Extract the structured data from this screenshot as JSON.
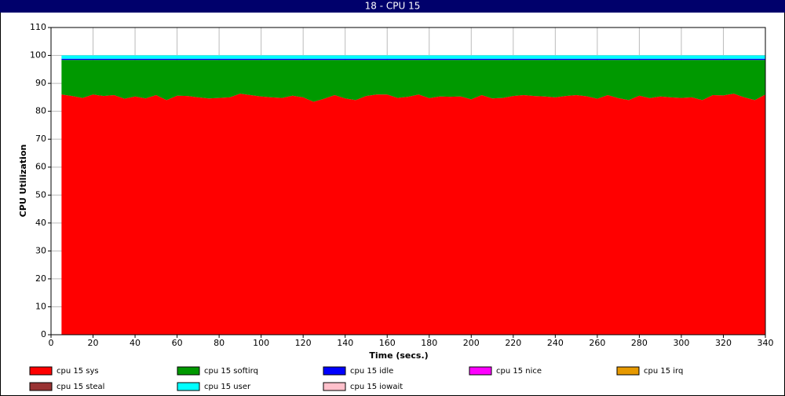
{
  "chart_data": {
    "type": "stacked_area",
    "title": "18 - CPU 15",
    "xlabel": "Time (secs.)",
    "ylabel": "CPU Utilization",
    "xlim": [
      0,
      340
    ],
    "xticks": [
      0,
      20,
      40,
      60,
      80,
      100,
      120,
      140,
      160,
      180,
      200,
      220,
      240,
      260,
      280,
      300,
      320,
      340
    ],
    "ylim": [
      0,
      110
    ],
    "yticks": [
      0,
      10,
      20,
      30,
      40,
      50,
      60,
      70,
      80,
      90,
      100,
      110
    ],
    "grid": true,
    "x": [
      5,
      10,
      15,
      20,
      25,
      30,
      35,
      40,
      45,
      50,
      55,
      60,
      65,
      70,
      75,
      80,
      85,
      90,
      95,
      100,
      105,
      110,
      115,
      120,
      125,
      130,
      135,
      140,
      145,
      150,
      155,
      160,
      165,
      170,
      175,
      180,
      185,
      190,
      195,
      200,
      205,
      210,
      215,
      220,
      225,
      230,
      235,
      240,
      245,
      250,
      255,
      260,
      265,
      270,
      275,
      280,
      285,
      290,
      295,
      300,
      305,
      310,
      315,
      320,
      325,
      330,
      335,
      340
    ],
    "series": [
      {
        "name": "cpu 15 sys",
        "color": "#ff0000",
        "values": [
          86,
          85.5,
          84.8,
          86,
          85.5,
          85.8,
          84.5,
          85.3,
          84.6,
          85.8,
          84,
          85.6,
          85.5,
          85,
          84.6,
          84.8,
          85,
          86.3,
          85.8,
          85.3,
          85,
          84.8,
          85.6,
          85,
          83.4,
          84.5,
          85.8,
          84.6,
          84,
          85.5,
          86,
          86,
          84.8,
          85.2,
          86,
          84.7,
          85.3,
          85.2,
          85.3,
          84.3,
          85.8,
          84.6,
          84.8,
          85.5,
          85.8,
          85.5,
          85.3,
          85,
          85.5,
          85.8,
          85.4,
          84.5,
          85.8,
          84.7,
          84,
          85.6,
          84.7,
          85.3,
          85,
          84.8,
          85,
          84,
          85.8,
          85.7,
          86.3,
          85,
          84,
          86
        ]
      },
      {
        "name": "cpu 15 softirq",
        "color": "#009900",
        "values": [
          12.4,
          12.9,
          13.6,
          12.4,
          12.9,
          12.6,
          13.9,
          13.1,
          13.8,
          12.6,
          14.4,
          12.8,
          12.9,
          13.4,
          13.8,
          13.6,
          13.4,
          12.1,
          12.6,
          13.1,
          13.4,
          13.6,
          12.8,
          13.4,
          15,
          13.9,
          12.6,
          13.8,
          14.4,
          12.9,
          12.4,
          12.4,
          13.6,
          13.2,
          12.4,
          13.7,
          13.1,
          13.2,
          13.1,
          14.1,
          12.6,
          13.8,
          13.6,
          12.9,
          12.6,
          12.9,
          13.1,
          13.4,
          12.9,
          12.6,
          13,
          13.9,
          12.6,
          13.7,
          14.4,
          12.8,
          13.7,
          13.1,
          13.4,
          13.6,
          13.4,
          14.4,
          12.6,
          12.7,
          12.1,
          13.4,
          14.4,
          12.4
        ]
      },
      {
        "name": "cpu 15 idle",
        "color": "#0000ff",
        "values": [
          0.4,
          0.4,
          0.4,
          0.4,
          0.4,
          0.4,
          0.4,
          0.4,
          0.4,
          0.4,
          0.4,
          0.4,
          0.4,
          0.4,
          0.4,
          0.4,
          0.4,
          0.4,
          0.4,
          0.4,
          0.4,
          0.4,
          0.4,
          0.4,
          0.4,
          0.4,
          0.4,
          0.4,
          0.4,
          0.4,
          0.4,
          0.4,
          0.4,
          0.4,
          0.4,
          0.4,
          0.4,
          0.4,
          0.4,
          0.4,
          0.4,
          0.4,
          0.4,
          0.4,
          0.4,
          0.4,
          0.4,
          0.4,
          0.4,
          0.4,
          0.4,
          0.4,
          0.4,
          0.4,
          0.4,
          0.4,
          0.4,
          0.4,
          0.4,
          0.4,
          0.4,
          0.4,
          0.4,
          0.4,
          0.4,
          0.4,
          0.4,
          0.4
        ]
      },
      {
        "name": "cpu 15 nice",
        "color": "#ff00ff",
        "values": [
          0,
          0,
          0,
          0,
          0,
          0,
          0,
          0,
          0,
          0,
          0,
          0,
          0,
          0,
          0,
          0,
          0,
          0,
          0,
          0,
          0,
          0,
          0,
          0,
          0,
          0,
          0,
          0,
          0,
          0,
          0,
          0,
          0,
          0,
          0,
          0,
          0,
          0,
          0,
          0,
          0,
          0,
          0,
          0,
          0,
          0,
          0,
          0,
          0,
          0,
          0,
          0,
          0,
          0,
          0,
          0,
          0,
          0,
          0,
          0,
          0,
          0,
          0,
          0,
          0,
          0,
          0,
          0
        ]
      },
      {
        "name": "cpu 15 irq",
        "color": "#e69900",
        "values": [
          0,
          0,
          0,
          0,
          0,
          0,
          0,
          0,
          0,
          0,
          0,
          0,
          0,
          0,
          0,
          0,
          0,
          0,
          0,
          0,
          0,
          0,
          0,
          0,
          0,
          0,
          0,
          0,
          0,
          0,
          0,
          0,
          0,
          0,
          0,
          0,
          0,
          0,
          0,
          0,
          0,
          0,
          0,
          0,
          0,
          0,
          0,
          0,
          0,
          0,
          0,
          0,
          0,
          0,
          0,
          0,
          0,
          0,
          0,
          0,
          0,
          0,
          0,
          0,
          0,
          0,
          0,
          0
        ]
      },
      {
        "name": "cpu 15 steal",
        "color": "#993333",
        "values": [
          0,
          0,
          0,
          0,
          0,
          0,
          0,
          0,
          0,
          0,
          0,
          0,
          0,
          0,
          0,
          0,
          0,
          0,
          0,
          0,
          0,
          0,
          0,
          0,
          0,
          0,
          0,
          0,
          0,
          0,
          0,
          0,
          0,
          0,
          0,
          0,
          0,
          0,
          0,
          0,
          0,
          0,
          0,
          0,
          0,
          0,
          0,
          0,
          0,
          0,
          0,
          0,
          0,
          0,
          0,
          0,
          0,
          0,
          0,
          0,
          0,
          0,
          0,
          0,
          0,
          0,
          0,
          0
        ]
      },
      {
        "name": "cpu 15 user",
        "color": "#00ffff",
        "values": [
          1.2,
          1.2,
          1.2,
          1.2,
          1.2,
          1.2,
          1.2,
          1.2,
          1.2,
          1.2,
          1.2,
          1.2,
          1.2,
          1.2,
          1.2,
          1.2,
          1.2,
          1.2,
          1.2,
          1.2,
          1.2,
          1.2,
          1.2,
          1.2,
          1.2,
          1.2,
          1.2,
          1.2,
          1.2,
          1.2,
          1.2,
          1.2,
          1.2,
          1.2,
          1.2,
          1.2,
          1.2,
          1.2,
          1.2,
          1.2,
          1.2,
          1.2,
          1.2,
          1.2,
          1.2,
          1.2,
          1.2,
          1.2,
          1.2,
          1.2,
          1.2,
          1.2,
          1.2,
          1.2,
          1.2,
          1.2,
          1.2,
          1.2,
          1.2,
          1.2,
          1.2,
          1.2,
          1.2,
          1.2,
          1.2,
          1.2,
          1.2,
          1.2
        ]
      },
      {
        "name": "cpu 15 iowait",
        "color": "#ffc0cb",
        "values": [
          0,
          0,
          0,
          0,
          0,
          0,
          0,
          0,
          0,
          0,
          0,
          0,
          0,
          0,
          0,
          0,
          0,
          0,
          0,
          0,
          0,
          0,
          0,
          0,
          0,
          0,
          0,
          0,
          0,
          0,
          0,
          0,
          0,
          0,
          0,
          0,
          0,
          0,
          0,
          0,
          0,
          0,
          0,
          0,
          0,
          0,
          0,
          0,
          0,
          0,
          0,
          0,
          0,
          0,
          0,
          0,
          0,
          0,
          0,
          0,
          0,
          0,
          0,
          0,
          0,
          0,
          0,
          0
        ]
      }
    ]
  }
}
